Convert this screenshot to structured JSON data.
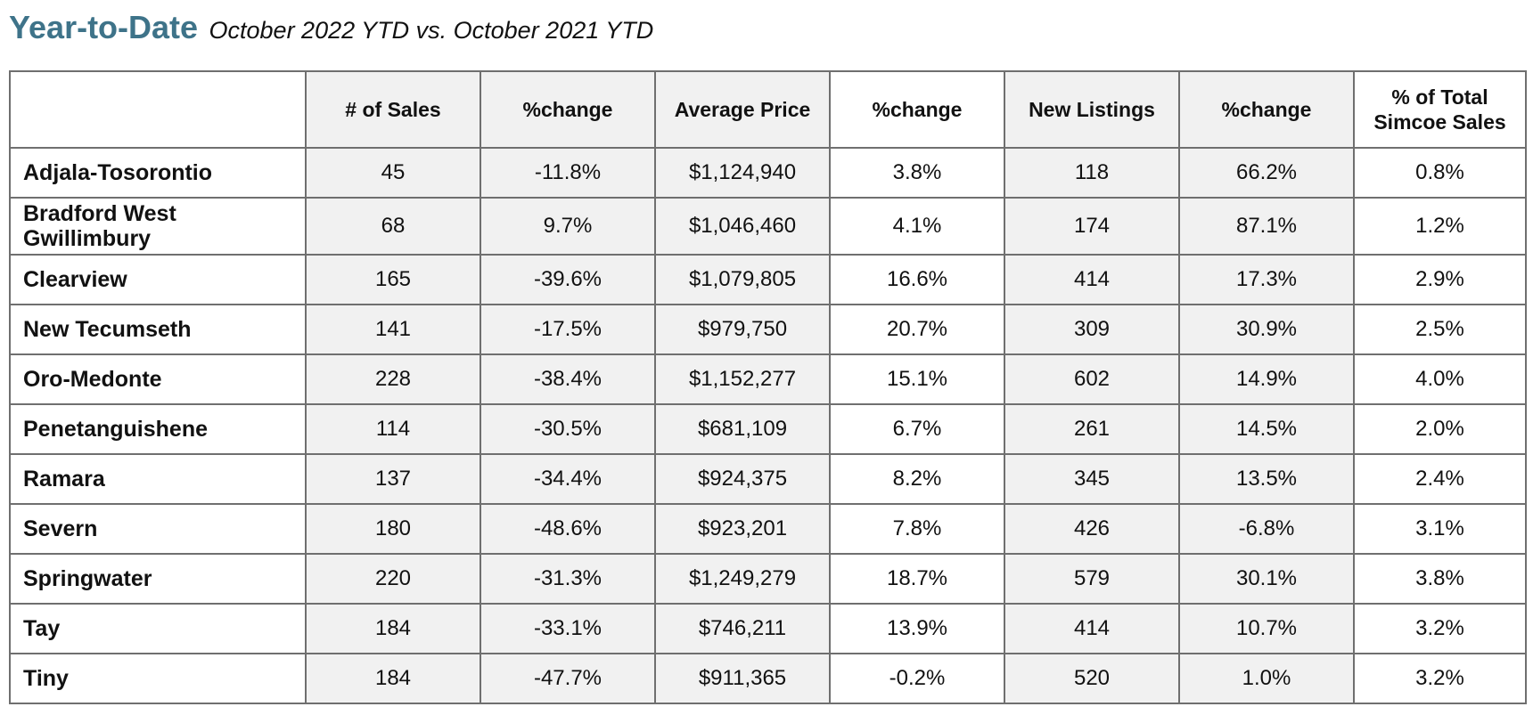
{
  "heading": {
    "title": "Year-to-Date",
    "subtitle": "October 2022 YTD vs. October 2021 YTD"
  },
  "table": {
    "columns": [
      "",
      "# of Sales",
      "%change",
      "Average Price",
      "%change",
      "New Listings",
      "%change",
      "% of Total Simcoe Sales"
    ],
    "rows": [
      {
        "area": "Adjala-Tosorontio",
        "sales": "45",
        "sales_change": "-11.8%",
        "avg_price": "$1,124,940",
        "price_change": "3.8%",
        "new_listings": "118",
        "listings_change": "66.2%",
        "pct_total": "0.8%"
      },
      {
        "area": "Bradford West Gwillimbury",
        "sales": "68",
        "sales_change": "9.7%",
        "avg_price": "$1,046,460",
        "price_change": "4.1%",
        "new_listings": "174",
        "listings_change": "87.1%",
        "pct_total": "1.2%"
      },
      {
        "area": "Clearview",
        "sales": "165",
        "sales_change": "-39.6%",
        "avg_price": "$1,079,805",
        "price_change": "16.6%",
        "new_listings": "414",
        "listings_change": "17.3%",
        "pct_total": "2.9%"
      },
      {
        "area": "New Tecumseth",
        "sales": "141",
        "sales_change": "-17.5%",
        "avg_price": "$979,750",
        "price_change": "20.7%",
        "new_listings": "309",
        "listings_change": "30.9%",
        "pct_total": "2.5%"
      },
      {
        "area": "Oro-Medonte",
        "sales": "228",
        "sales_change": "-38.4%",
        "avg_price": "$1,152,277",
        "price_change": "15.1%",
        "new_listings": "602",
        "listings_change": "14.9%",
        "pct_total": "4.0%"
      },
      {
        "area": "Penetanguishene",
        "sales": "114",
        "sales_change": "-30.5%",
        "avg_price": "$681,109",
        "price_change": "6.7%",
        "new_listings": "261",
        "listings_change": "14.5%",
        "pct_total": "2.0%"
      },
      {
        "area": "Ramara",
        "sales": "137",
        "sales_change": "-34.4%",
        "avg_price": "$924,375",
        "price_change": "8.2%",
        "new_listings": "345",
        "listings_change": "13.5%",
        "pct_total": "2.4%"
      },
      {
        "area": "Severn",
        "sales": "180",
        "sales_change": "-48.6%",
        "avg_price": "$923,201",
        "price_change": "7.8%",
        "new_listings": "426",
        "listings_change": "-6.8%",
        "pct_total": "3.1%"
      },
      {
        "area": "Springwater",
        "sales": "220",
        "sales_change": "-31.3%",
        "avg_price": "$1,249,279",
        "price_change": "18.7%",
        "new_listings": "579",
        "listings_change": "30.1%",
        "pct_total": "3.8%"
      },
      {
        "area": "Tay",
        "sales": "184",
        "sales_change": "-33.1%",
        "avg_price": "$746,211",
        "price_change": "13.9%",
        "new_listings": "414",
        "listings_change": "10.7%",
        "pct_total": "3.2%"
      },
      {
        "area": "Tiny",
        "sales": "184",
        "sales_change": "-47.7%",
        "avg_price": "$911,365",
        "price_change": "-0.2%",
        "new_listings": "520",
        "listings_change": "1.0%",
        "pct_total": "3.2%"
      }
    ]
  },
  "colors": {
    "title": "#3e7389",
    "shaded_cell": "#f1f1f1",
    "border": "#6f6f6f"
  }
}
